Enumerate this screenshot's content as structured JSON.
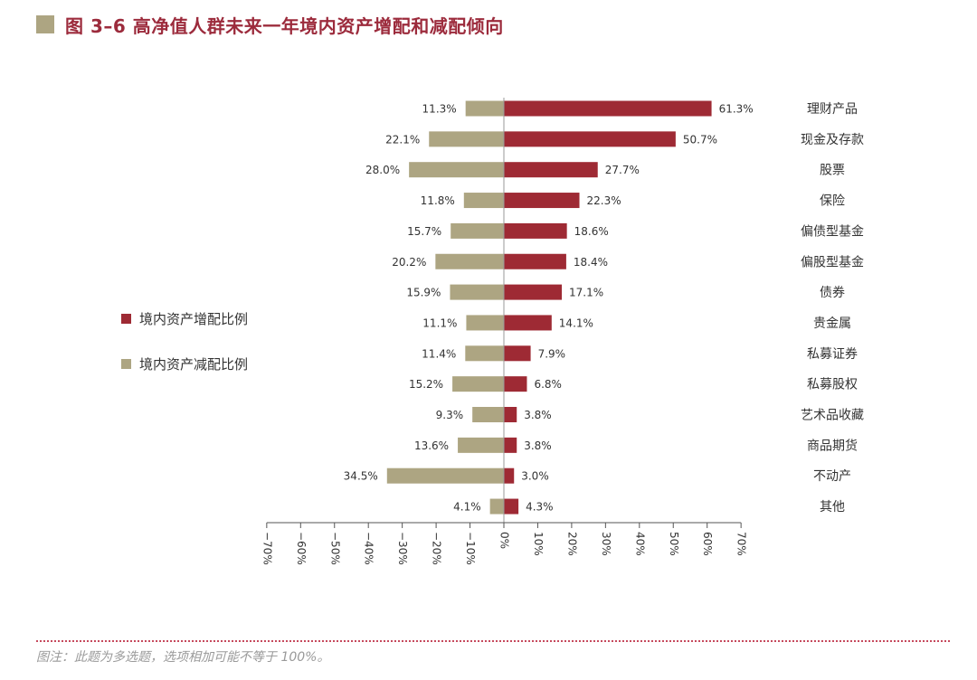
{
  "title": "图 3–6  高净值人群未来一年境内资产增配和减配倾向",
  "colors": {
    "title": "#9c2b3c",
    "increase": "#9e2a34",
    "decrease": "#ada582",
    "axis": "#555555",
    "dotted_rule": "#c64a5d",
    "footnote": "#9a9a9a"
  },
  "footnote": "图注：此题为多选题，选项相加可能不等于 100%。",
  "chart_data": {
    "type": "bar",
    "orientation": "horizontal-diverging",
    "categories": [
      "理财产品",
      "现金及存款",
      "股票",
      "保险",
      "偏债型基金",
      "偏股型基金",
      "债券",
      "贵金属",
      "私募证券",
      "私募股权",
      "艺术品收藏",
      "商品期货",
      "不动产",
      "其他"
    ],
    "series": [
      {
        "name": "境内资产增配比例",
        "values": [
          61.3,
          50.7,
          27.7,
          22.3,
          18.6,
          18.4,
          17.1,
          14.1,
          7.9,
          6.8,
          3.8,
          3.8,
          3.0,
          4.3
        ],
        "labels": [
          "61.3%",
          "50.7%",
          "27.7%",
          "22.3%",
          "18.6%",
          "18.4%",
          "17.1%",
          "14.1%",
          "7.9%",
          "6.8%",
          "3.8%",
          "3.8%",
          "3.0%",
          "4.3%"
        ]
      },
      {
        "name": "境内资产减配比例",
        "values": [
          11.3,
          22.1,
          28.0,
          11.8,
          15.7,
          20.2,
          15.9,
          11.1,
          11.4,
          15.2,
          9.3,
          13.6,
          34.5,
          4.1
        ],
        "labels": [
          "11.3%",
          "22.1%",
          "28.0%",
          "11.8%",
          "15.7%",
          "20.2%",
          "15.9%",
          "11.1%",
          "11.4%",
          "15.2%",
          "9.3%",
          "13.6%",
          "34.5%",
          "4.1%"
        ]
      }
    ],
    "x_ticks": [
      "−70%",
      "−60%",
      "−50%",
      "−40%",
      "−30%",
      "−20%",
      "−10%",
      "0%",
      "10%",
      "20%",
      "30%",
      "40%",
      "50%",
      "60%",
      "70%"
    ],
    "xlim": [
      -70,
      70
    ],
    "legend_position": "left",
    "grid": false
  }
}
